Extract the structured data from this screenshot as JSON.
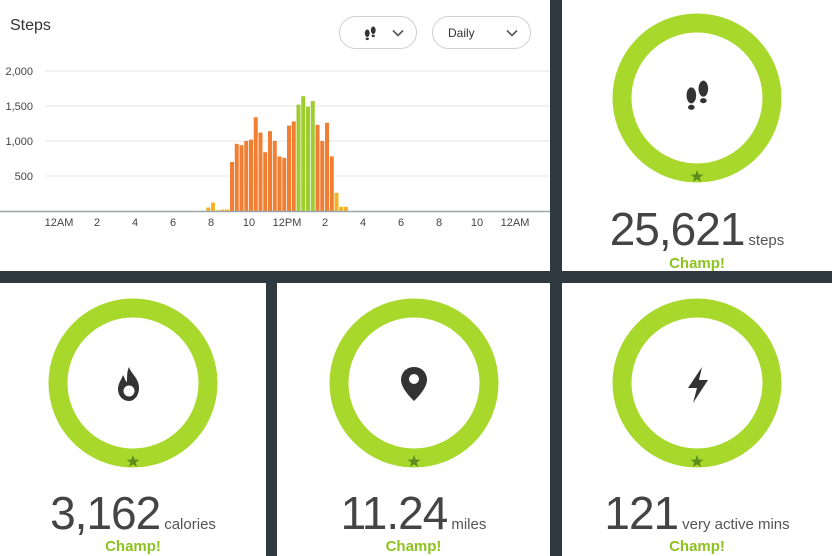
{
  "chart_card": {
    "title": "Steps",
    "activity_icon": "footprints-icon",
    "period_label": "Daily",
    "chevron_icon": "chevron-down-icon"
  },
  "chart_data": {
    "type": "bar",
    "title": "Steps",
    "xlabel": "",
    "ylabel": "",
    "x_tick_labels": [
      "12AM",
      "2",
      "4",
      "6",
      "8",
      "10",
      "12PM",
      "2",
      "4",
      "6",
      "8",
      "10",
      "12AM"
    ],
    "y_tick_labels": [
      "500",
      "1,000",
      "1,500",
      "2,000"
    ],
    "y_ticks": [
      500,
      1000,
      1500,
      2000
    ],
    "ylim": [
      0,
      2100
    ],
    "grid": true,
    "bucket_minutes": 15,
    "colors": {
      "low": "#f5b323",
      "medium": "#f07f33",
      "high": "#9fcc2e"
    },
    "bars": [
      {
        "t": 7.75,
        "v": 50,
        "level": "low"
      },
      {
        "t": 8.0,
        "v": 120,
        "level": "low"
      },
      {
        "t": 8.25,
        "v": 10,
        "level": "low"
      },
      {
        "t": 8.5,
        "v": 20,
        "level": "low"
      },
      {
        "t": 8.75,
        "v": 20,
        "level": "low"
      },
      {
        "t": 9.0,
        "v": 700,
        "level": "medium"
      },
      {
        "t": 9.25,
        "v": 960,
        "level": "medium"
      },
      {
        "t": 9.5,
        "v": 940,
        "level": "medium"
      },
      {
        "t": 9.75,
        "v": 1000,
        "level": "medium"
      },
      {
        "t": 10.0,
        "v": 1020,
        "level": "medium"
      },
      {
        "t": 10.25,
        "v": 1340,
        "level": "medium"
      },
      {
        "t": 10.5,
        "v": 1120,
        "level": "medium"
      },
      {
        "t": 10.75,
        "v": 840,
        "level": "medium"
      },
      {
        "t": 11.0,
        "v": 1140,
        "level": "medium"
      },
      {
        "t": 11.25,
        "v": 1000,
        "level": "medium"
      },
      {
        "t": 11.5,
        "v": 780,
        "level": "medium"
      },
      {
        "t": 11.75,
        "v": 760,
        "level": "medium"
      },
      {
        "t": 12.0,
        "v": 1220,
        "level": "medium"
      },
      {
        "t": 12.25,
        "v": 1280,
        "level": "medium"
      },
      {
        "t": 12.5,
        "v": 1520,
        "level": "high"
      },
      {
        "t": 12.75,
        "v": 1640,
        "level": "high"
      },
      {
        "t": 13.0,
        "v": 1490,
        "level": "high"
      },
      {
        "t": 13.25,
        "v": 1570,
        "level": "high"
      },
      {
        "t": 13.5,
        "v": 1230,
        "level": "medium"
      },
      {
        "t": 13.75,
        "v": 1000,
        "level": "medium"
      },
      {
        "t": 14.0,
        "v": 1260,
        "level": "medium"
      },
      {
        "t": 14.25,
        "v": 780,
        "level": "medium"
      },
      {
        "t": 14.5,
        "v": 260,
        "level": "low"
      },
      {
        "t": 14.75,
        "v": 60,
        "level": "low"
      },
      {
        "t": 15.0,
        "v": 60,
        "level": "low"
      }
    ]
  },
  "stats": {
    "steps": {
      "value": "25,621",
      "unit": "steps",
      "badge": "Champ!",
      "icon": "footprints-icon",
      "ring_color": "#a8d82c",
      "goal_progress": 1.0
    },
    "calories": {
      "value": "3,162",
      "unit": "calories",
      "badge": "Champ!",
      "icon": "flame-icon",
      "ring_color": "#a8d82c",
      "goal_progress": 1.0
    },
    "miles": {
      "value": "11.24",
      "unit": "miles",
      "badge": "Champ!",
      "icon": "location-pin-icon",
      "ring_color": "#a8d82c",
      "goal_progress": 1.0
    },
    "active": {
      "value": "121",
      "unit": "very active mins",
      "badge": "Champ!",
      "icon": "lightning-bolt-icon",
      "ring_color": "#a8d82c",
      "goal_progress": 1.0
    }
  }
}
